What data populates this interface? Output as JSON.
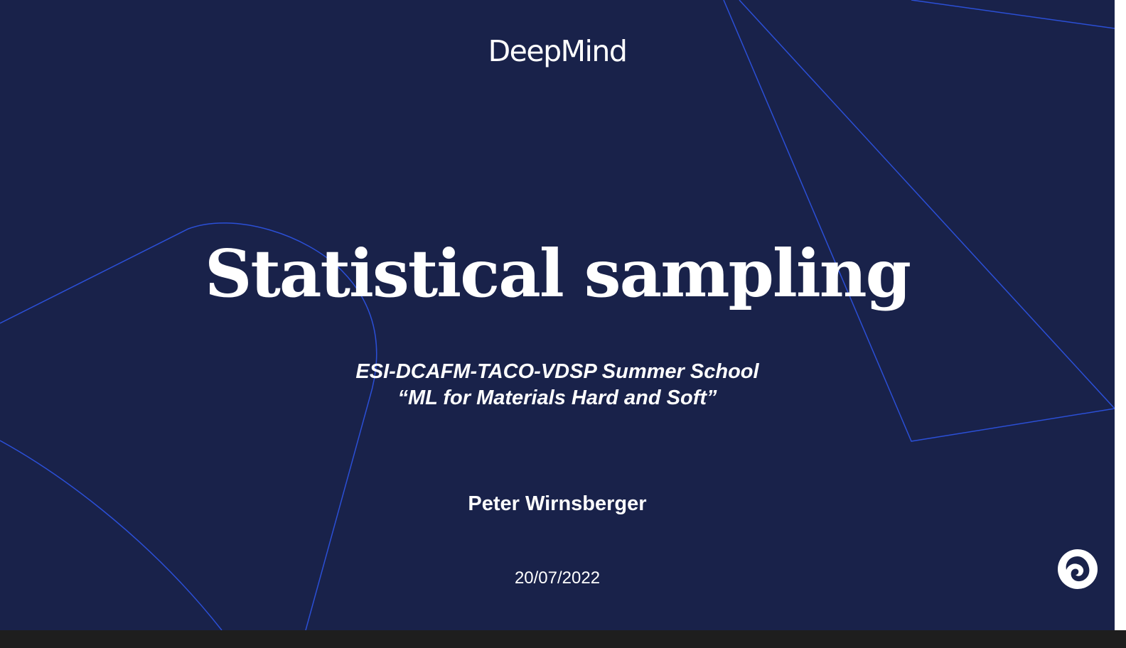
{
  "slide": {
    "brand": "DeepMind",
    "title": "Statistical sampling",
    "subtitle_line1": "ESI-DCAFM-TACO-VDSP Summer School",
    "subtitle_line2": "“ML for Materials Hard and Soft”",
    "author": "Peter Wirnsberger",
    "date": "20/07/2022",
    "corner_icon": "deepmind-logo-icon"
  },
  "colors": {
    "background": "#19224a",
    "accent_lines": "#2b4fd6",
    "text": "#ffffff"
  }
}
